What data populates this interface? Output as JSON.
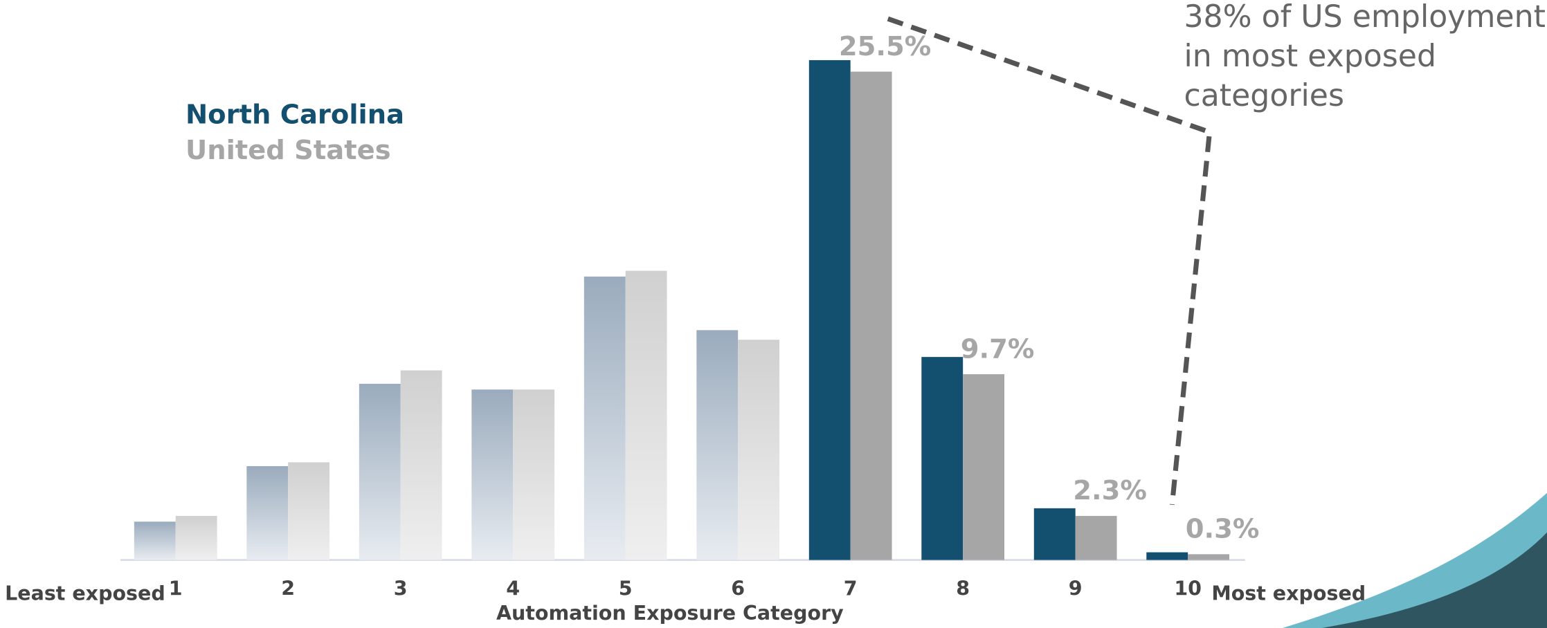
{
  "chart_data": {
    "type": "bar",
    "categories": [
      "1",
      "2",
      "3",
      "4",
      "5",
      "6",
      "7",
      "8",
      "9",
      "10"
    ],
    "x_label": "Automation Exposure Category",
    "left_label": "Least exposed",
    "right_label": "Most exposed",
    "annotation": [
      "38% of US employment",
      "in most exposed",
      "categories"
    ],
    "series": [
      {
        "name": "North Carolina",
        "color": "#134f6f",
        "values": [
          2.0,
          4.9,
          9.2,
          8.9,
          14.8,
          12.0,
          26.1,
          10.6,
          2.7,
          0.4
        ],
        "colors": [
          "#9aabbd",
          "#9aabbd",
          "#9aabbd",
          "#9aabbd",
          "#9aabbd",
          "#9aabbd",
          "#134f6f",
          "#134f6f",
          "#134f6f",
          "#134f6f"
        ],
        "bottom_colors": [
          "#e8ecf1",
          "#e8ecf1",
          "#e8ecf1",
          "#e8ecf1",
          "#e8ecf1",
          "#e8ecf1",
          "#134f6f",
          "#134f6f",
          "#134f6f",
          "#134f6f"
        ]
      },
      {
        "name": "United States",
        "color": "#a6a6a6",
        "values": [
          2.3,
          5.1,
          9.9,
          8.9,
          15.1,
          11.5,
          25.5,
          9.7,
          2.3,
          0.3
        ],
        "value_labels": [
          null,
          null,
          null,
          null,
          null,
          null,
          "25.5%",
          "9.7%",
          "2.3%",
          "0.3%"
        ],
        "colors": [
          "#d0d0d0",
          "#d0d0d0",
          "#d0d0d0",
          "#d0d0d0",
          "#d0d0d0",
          "#d0d0d0",
          "#a6a6a6",
          "#a6a6a6",
          "#a6a6a6",
          "#a6a6a6"
        ],
        "bottom_colors": [
          "#efefef",
          "#efefef",
          "#efefef",
          "#efefef",
          "#efefef",
          "#efefef",
          "#a6a6a6",
          "#a6a6a6",
          "#a6a6a6",
          "#a6a6a6"
        ]
      }
    ]
  }
}
